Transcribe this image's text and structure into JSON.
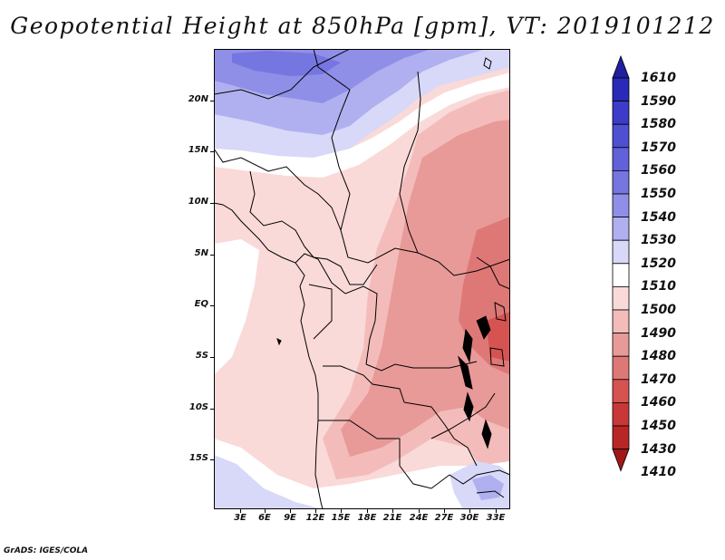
{
  "title": "Geopotential Height at 850hPa [gpm], VT: 2019101212",
  "credit": "GrADS: IGES/COLA",
  "map": {
    "lat_labels": [
      "20N",
      "15N",
      "10N",
      "5N",
      "EQ",
      "5S",
      "10S",
      "15S"
    ],
    "lon_labels": [
      "3E",
      "6E",
      "9E",
      "12E",
      "15E",
      "18E",
      "21E",
      "24E",
      "27E",
      "30E",
      "33E"
    ],
    "lat_range": [
      -19,
      25
    ],
    "lon_range": [
      0,
      35
    ]
  },
  "legend": {
    "levels": [
      "1610",
      "1590",
      "1580",
      "1570",
      "1560",
      "1550",
      "1540",
      "1530",
      "1520",
      "1510",
      "1500",
      "1490",
      "1480",
      "1470",
      "1460",
      "1450",
      "1430",
      "1410"
    ],
    "colors": [
      "#1f1fa0",
      "#2a2ab8",
      "#3c3cc8",
      "#4f4fd2",
      "#6161da",
      "#7676e0",
      "#8f8fe8",
      "#b0b0f0",
      "#d8d8f8",
      "#ffffff",
      "#f9dad9",
      "#f3bcba",
      "#e89a98",
      "#de7876",
      "#d55452",
      "#c83838",
      "#b82626",
      "#a01818"
    ]
  }
}
